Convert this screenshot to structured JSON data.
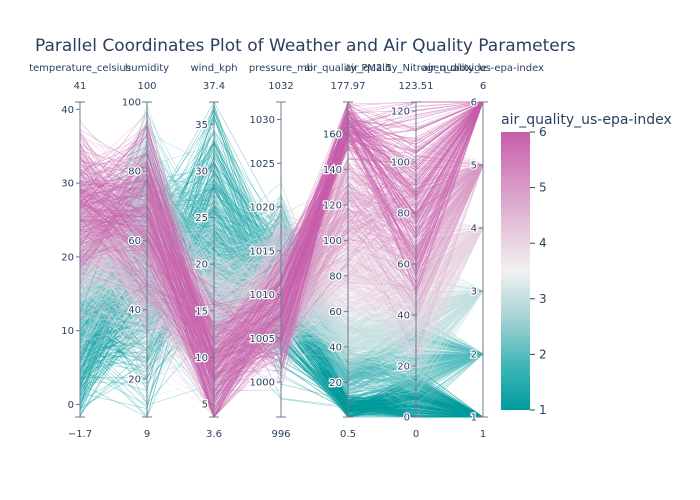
{
  "chart_data": {
    "type": "parallel_coordinates",
    "title": "Parallel Coordinates Plot of Weather and Air Quality Parameters",
    "color_dimension": "air_quality_us-epa-index",
    "colorscale": [
      "#009B9E",
      "#42B7B9",
      "#A7D3D4",
      "#F1F1F1",
      "#E4C1D9",
      "#D691C1",
      "#C75DAB"
    ],
    "colorbar": {
      "title": "air_quality_us-epa-index",
      "range": [
        1,
        6
      ],
      "ticks": [
        "1",
        "2",
        "3",
        "4",
        "5",
        "6"
      ]
    },
    "dimensions": [
      {
        "label": "temperature_celsius",
        "range": [
          -1.7,
          41
        ],
        "min_label": "−1.7",
        "max_label": "41",
        "ticks": [
          0,
          10,
          20,
          30,
          40
        ],
        "tick_labels": [
          "0",
          "10",
          "20",
          "30",
          "40"
        ]
      },
      {
        "label": "humidity",
        "range": [
          9,
          100
        ],
        "min_label": "9",
        "max_label": "100",
        "ticks": [
          20,
          40,
          60,
          80,
          100
        ],
        "tick_labels": [
          "20",
          "40",
          "60",
          "80",
          "100"
        ]
      },
      {
        "label": "wind_kph",
        "range": [
          3.6,
          37.4
        ],
        "min_label": "3.6",
        "max_label": "37.4",
        "ticks": [
          5,
          10,
          15,
          20,
          25,
          30,
          35
        ],
        "tick_labels": [
          "5",
          "10",
          "15",
          "20",
          "25",
          "30",
          "35"
        ]
      },
      {
        "label": "pressure_mb",
        "range": [
          996,
          1032
        ],
        "min_label": "996",
        "max_label": "1032",
        "ticks": [
          1000,
          1005,
          1010,
          1015,
          1020,
          1025,
          1030
        ],
        "tick_labels": [
          "1000",
          "1005",
          "1010",
          "1015",
          "1020",
          "1025",
          "1030"
        ]
      },
      {
        "label": "air_quality_PM2.5",
        "range": [
          0.5,
          177.97
        ],
        "min_label": "0.5",
        "max_label": "177.97",
        "ticks": [
          20,
          40,
          60,
          80,
          100,
          120,
          140,
          160
        ],
        "tick_labels": [
          "20",
          "40",
          "60",
          "80",
          "100",
          "120",
          "140",
          "160"
        ]
      },
      {
        "label": "air_quality_Nitrogen_dioxide",
        "range": [
          0,
          123.51
        ],
        "min_label": "0",
        "max_label": "123.51",
        "ticks": [
          0,
          20,
          40,
          60,
          80,
          100,
          120
        ],
        "tick_labels": [
          "0",
          "20",
          "40",
          "60",
          "80",
          "100",
          "120"
        ]
      },
      {
        "label": "air_quality_us-epa-index",
        "range": [
          1,
          6
        ],
        "min_label": "1",
        "max_label": "6",
        "ticks": [
          1,
          2,
          3,
          4,
          5,
          6
        ],
        "tick_labels": [
          "1",
          "2",
          "3",
          "4",
          "5",
          "6"
        ]
      }
    ]
  }
}
